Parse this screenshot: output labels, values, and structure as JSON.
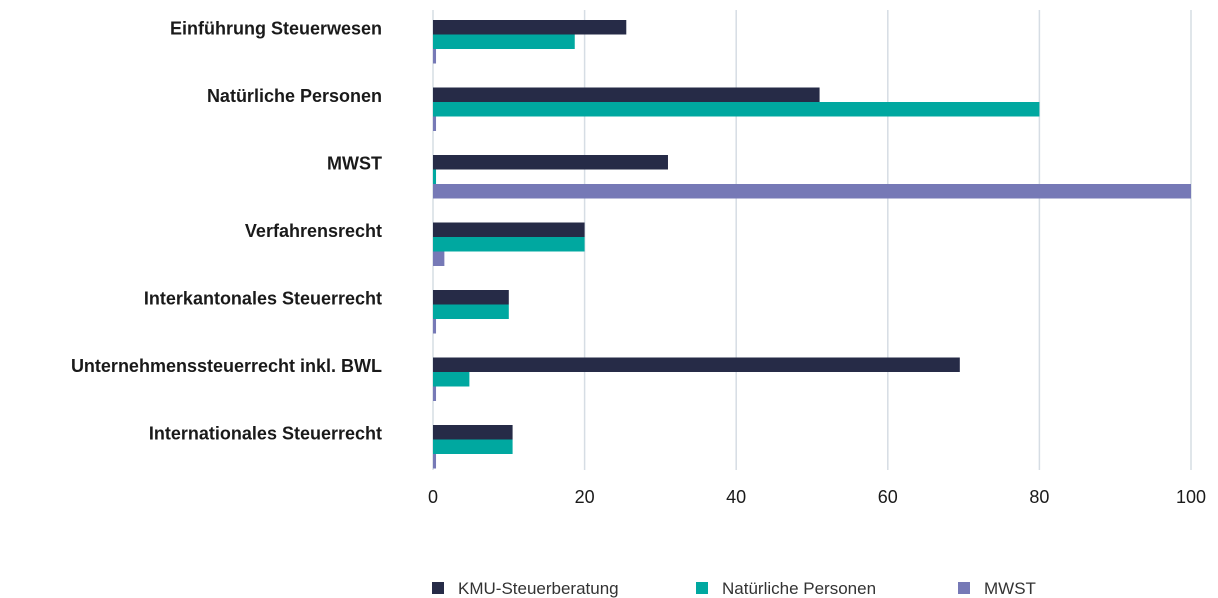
{
  "chart_data": {
    "type": "bar",
    "orientation": "horizontal",
    "categories": [
      "Einführung Steuerwesen",
      "Natürliche Personen",
      "MWST",
      "Verfahrensrecht",
      "Interkantonales Steuerrecht",
      "Unternehmenssteuerrecht inkl. BWL",
      "Internationales Steuerrecht"
    ],
    "series": [
      {
        "name": "KMU-Steuerberatung",
        "color": "#262b47",
        "values": [
          25.5,
          51,
          31,
          20,
          10,
          69.5,
          10.5
        ]
      },
      {
        "name": "Natürliche Personen",
        "color": "#00a8a0",
        "values": [
          18.7,
          80,
          0.4,
          20,
          10,
          4.8,
          10.5
        ]
      },
      {
        "name": "MWST",
        "color": "#7679b6",
        "values": [
          0.4,
          0.4,
          100,
          1.5,
          0.4,
          0.4,
          0.4
        ]
      }
    ],
    "xlim": [
      0,
      100
    ],
    "xticks": [
      0,
      20,
      40,
      60,
      80,
      100
    ],
    "grid": true,
    "legend_position": "bottom",
    "title": "",
    "xlabel": "",
    "ylabel": ""
  }
}
